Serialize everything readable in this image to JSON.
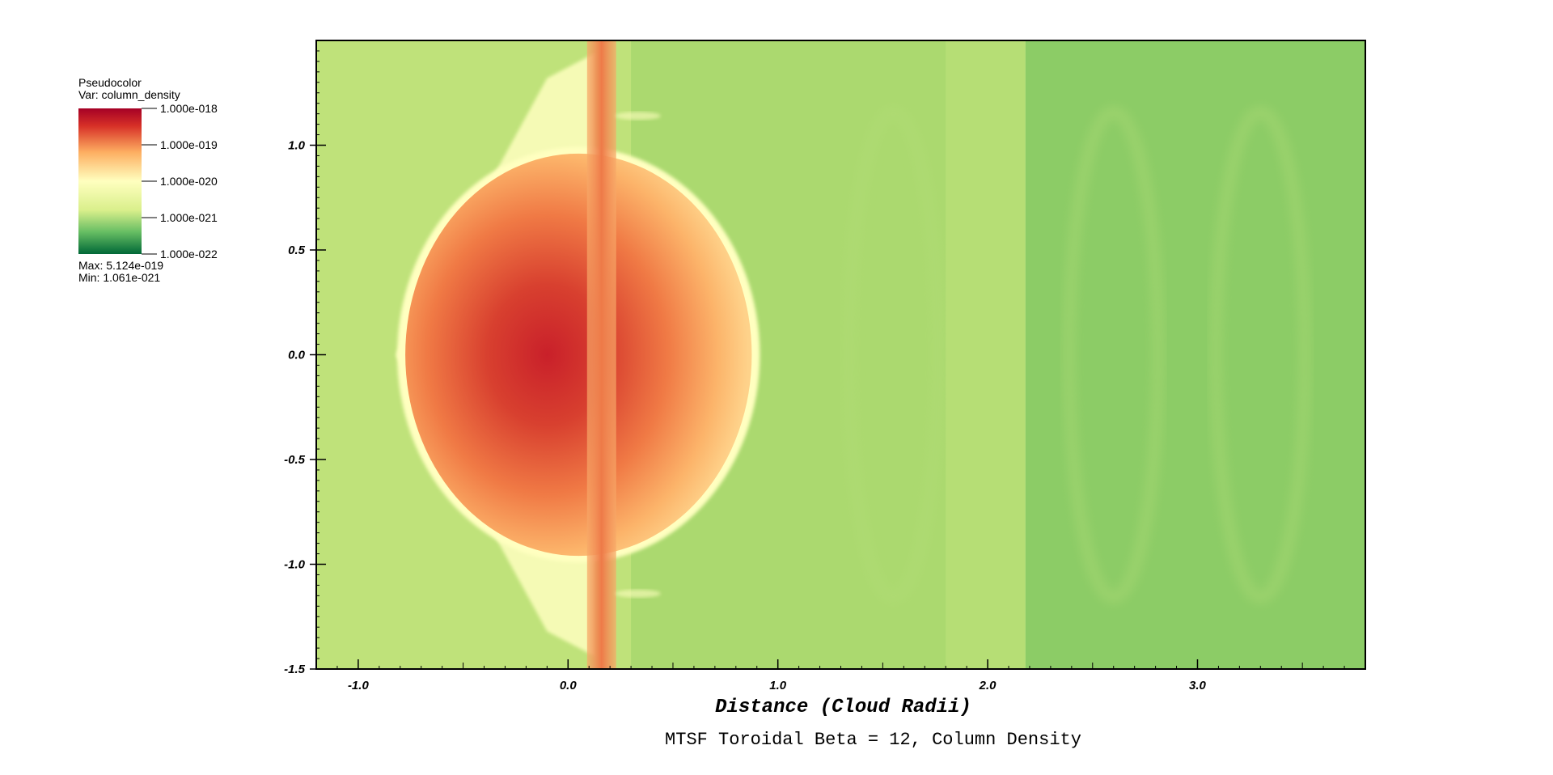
{
  "chart_data": {
    "type": "heatmap",
    "title": "MTSF Toroidal Beta = 12, Column Density",
    "xlabel": "Distance (Cloud Radii)",
    "ylabel": "",
    "xlim": [
      -1.2,
      3.8
    ],
    "ylim": [
      -1.5,
      1.5
    ],
    "x_ticks": [
      "-1.0",
      "0.0",
      "1.0",
      "2.0",
      "3.0"
    ],
    "x_tick_values": [
      -1.0,
      0.0,
      1.0,
      2.0,
      3.0
    ],
    "y_ticks": [
      "-1.5",
      "-1.0",
      "-0.5",
      "0.0",
      "0.5",
      "1.0"
    ],
    "y_tick_values": [
      -1.5,
      -1.0,
      -0.5,
      0.0,
      0.5,
      1.0
    ],
    "colormap": [
      "#006837",
      "#66bd63",
      "#d9ef8b",
      "#ffffbf",
      "#fdae61",
      "#d73027",
      "#a50026"
    ],
    "legend": {
      "plot_type": "Pseudocolor",
      "variable": "Var: column_density",
      "labels": [
        "1.000e-018",
        "1.000e-019",
        "1.000e-020",
        "1.000e-021",
        "1.000e-022"
      ],
      "label_values": [
        1e-18,
        1e-19,
        1e-20,
        1e-21,
        1e-22
      ],
      "max_text": "Max:  5.124e-019",
      "min_text": "Min:  1.061e-021"
    },
    "features": {
      "cloud_center": [
        0.05,
        0.0
      ],
      "cloud_radius": 0.96,
      "filament_x": 0.16,
      "background_boundary_x": 2.18
    },
    "colors": {
      "background_near": "#bfe27a",
      "background_mid": "#a8d86e",
      "background_far": "#8ccc66",
      "shell": "#ffffc0",
      "core": "#c9202a",
      "filament": "#f28a50"
    }
  }
}
